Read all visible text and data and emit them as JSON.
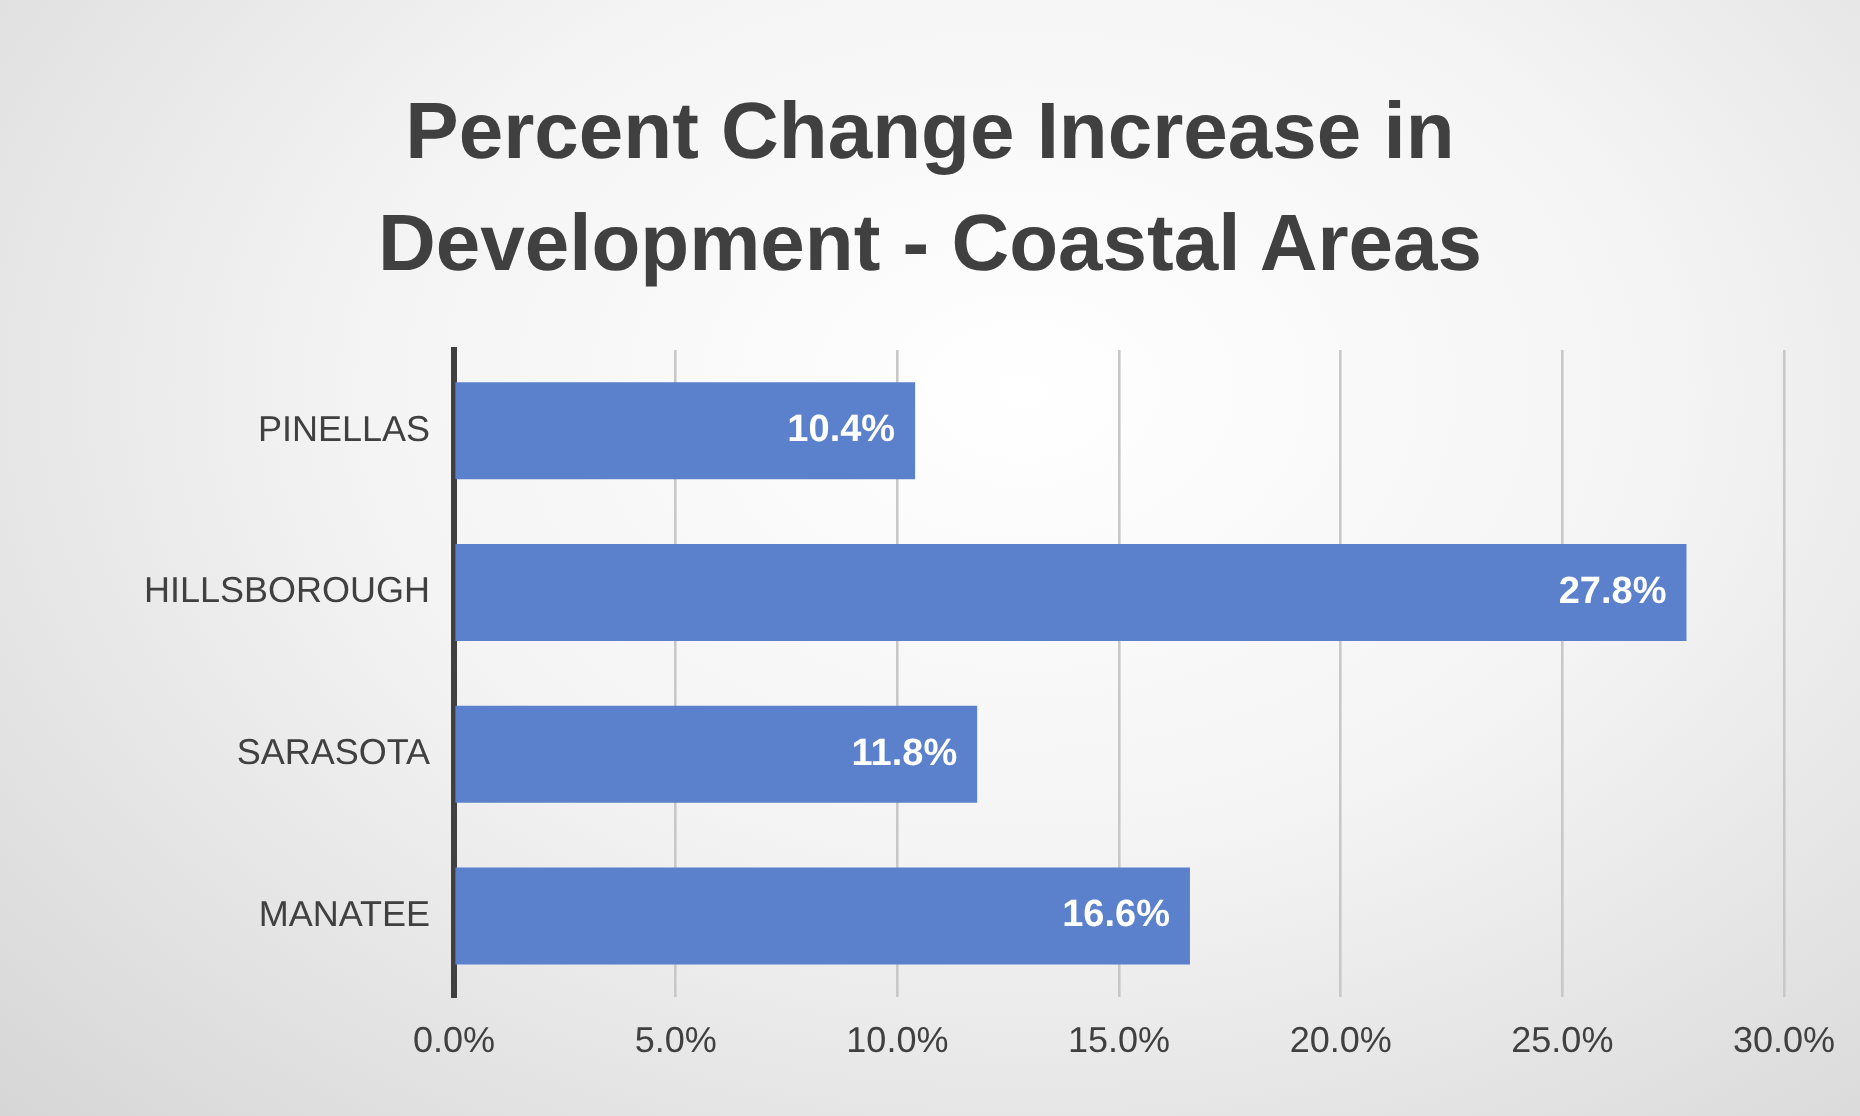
{
  "chart_data": {
    "type": "bar",
    "orientation": "horizontal",
    "title": "Percent Change Increase in Development - Coastal Areas",
    "categories": [
      "PINELLAS",
      "HILLSBOROUGH",
      "SARASOTA",
      "MANATEE"
    ],
    "values": [
      10.4,
      27.8,
      11.8,
      16.6
    ],
    "color": "#5b80cc",
    "value_labels": [
      "10.4%",
      "27.8%",
      "11.8%",
      "16.6%"
    ],
    "xlim": [
      0,
      30
    ],
    "xticks": [
      {
        "value": 0,
        "label": "0.0%"
      },
      {
        "value": 5,
        "label": "5.0%"
      },
      {
        "value": 10,
        "label": "10.0%"
      },
      {
        "value": 15,
        "label": "15.0%"
      },
      {
        "value": 20,
        "label": "20.0%"
      },
      {
        "value": 25,
        "label": "25.0%"
      },
      {
        "value": 30,
        "label": "30.0%"
      }
    ],
    "grid": "x",
    "legend": false
  }
}
